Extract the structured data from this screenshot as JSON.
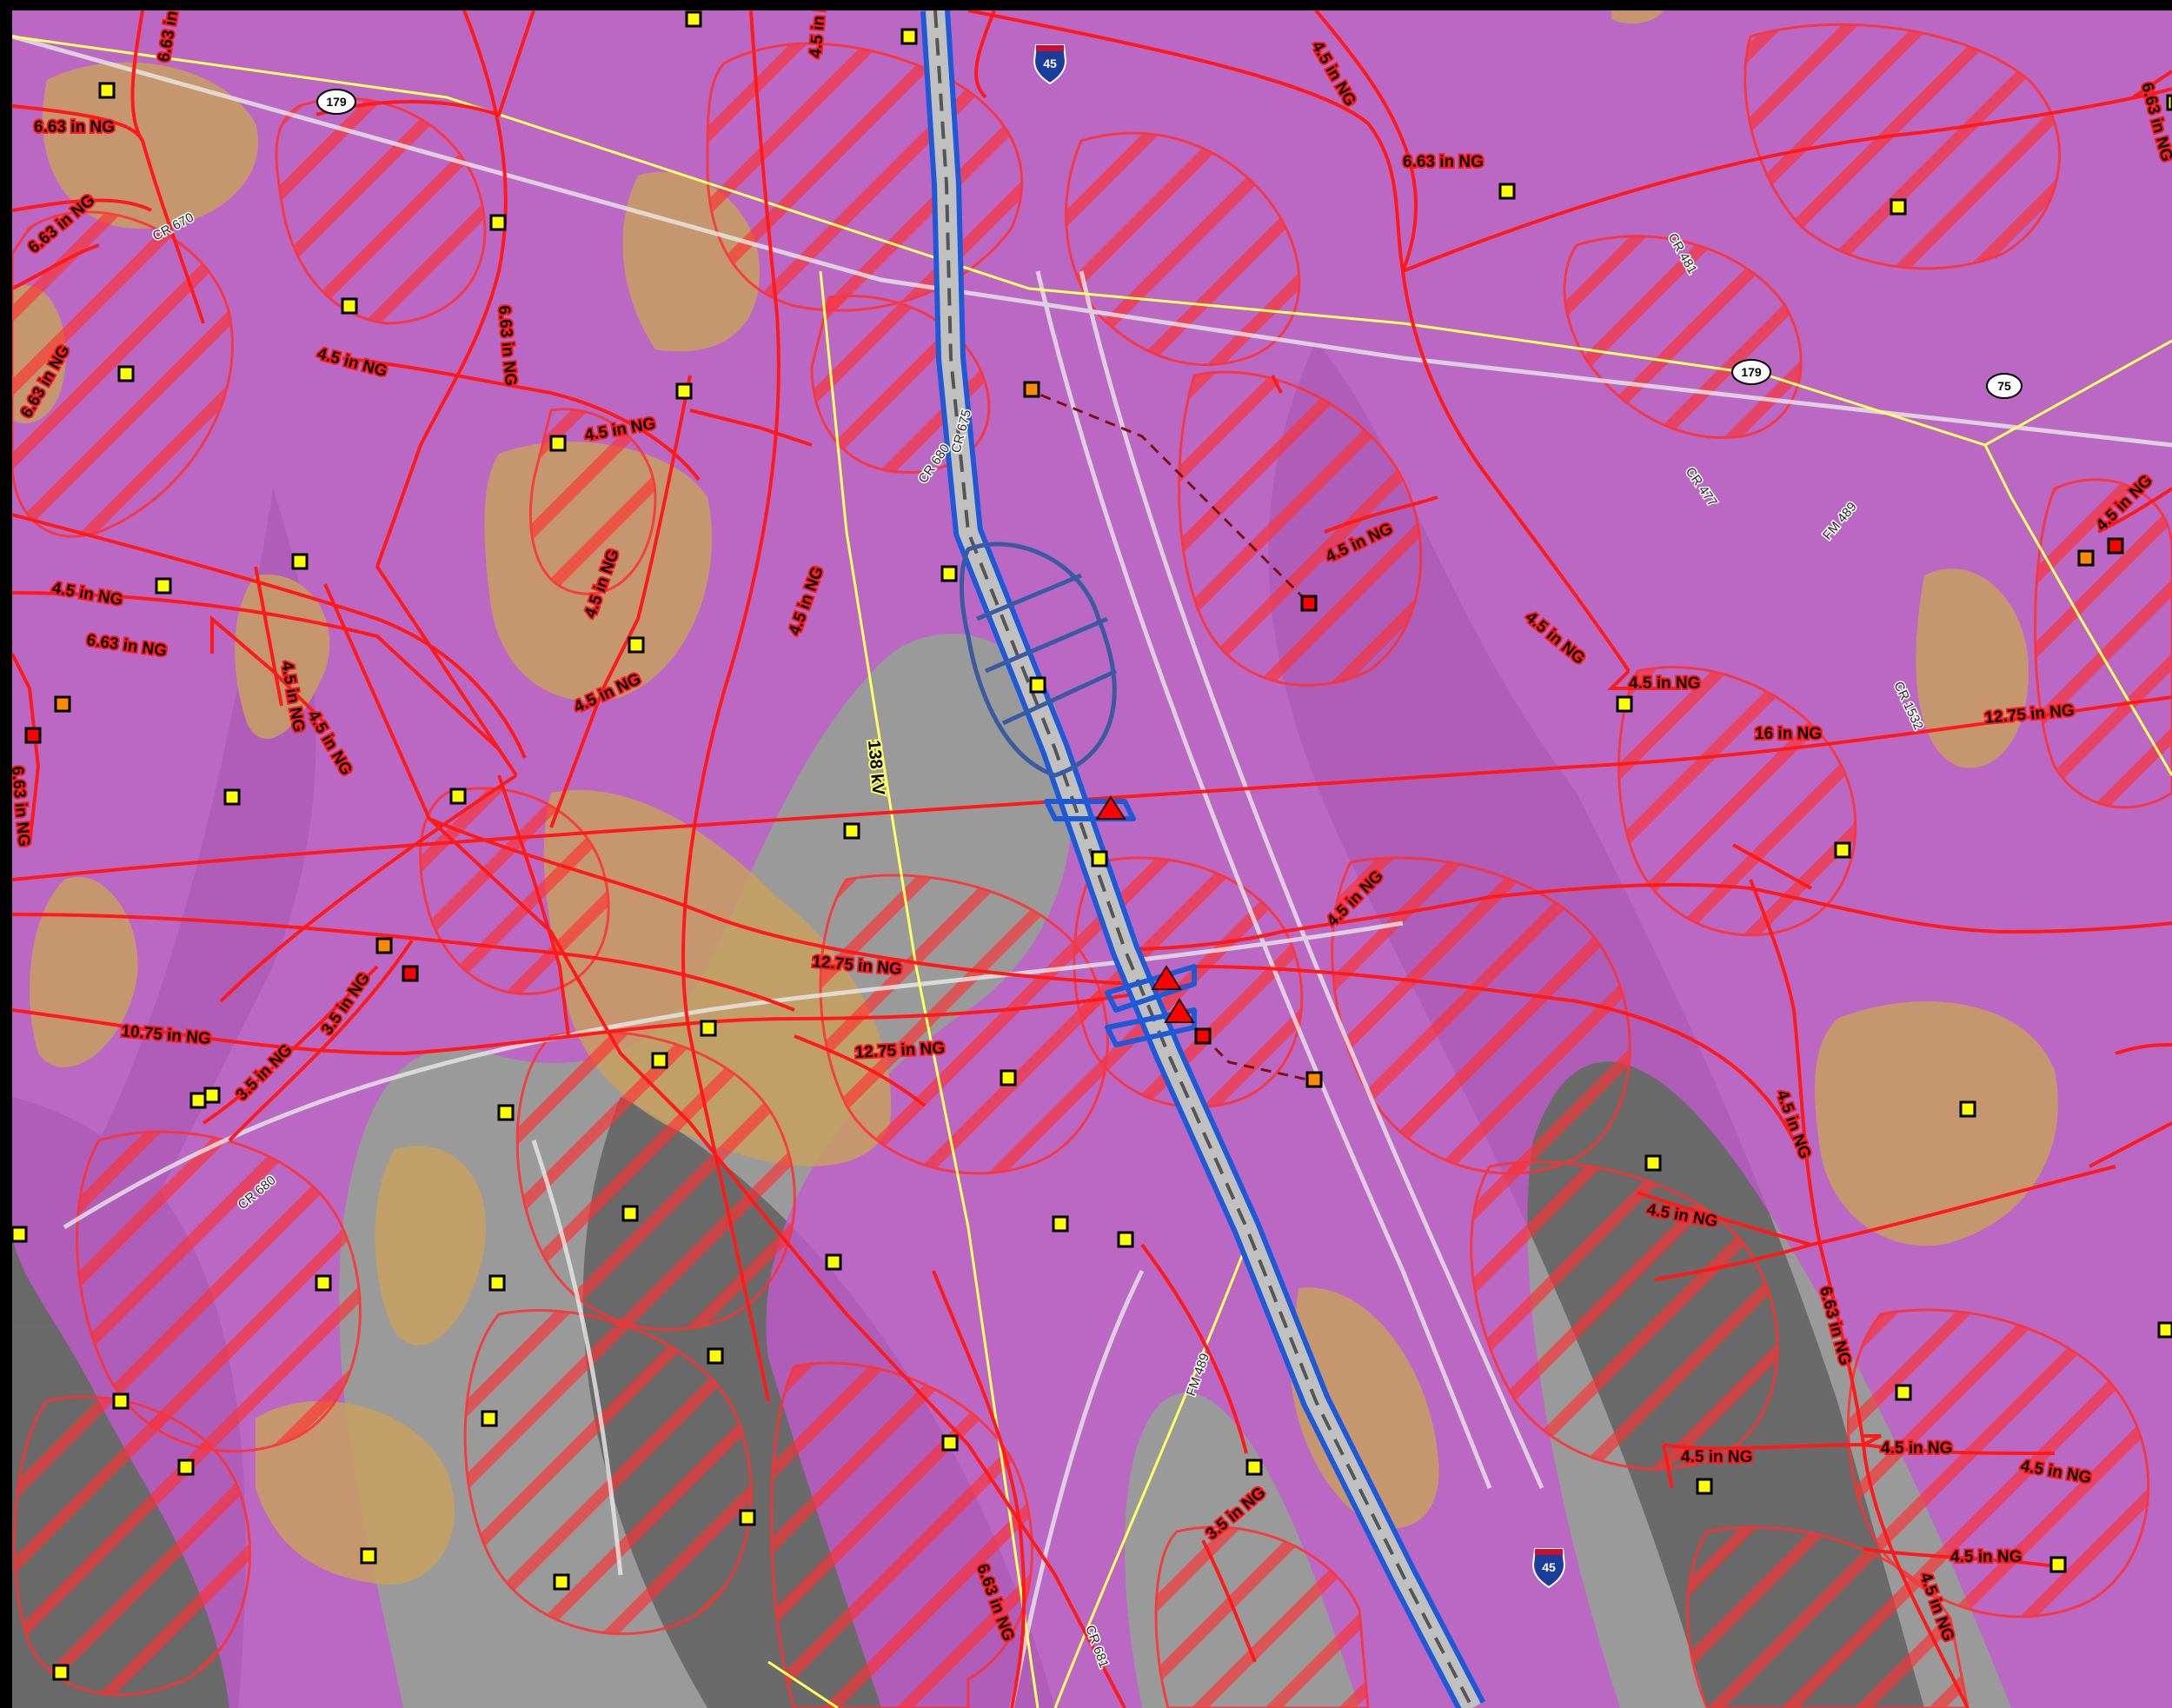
{
  "map": {
    "colors": {
      "background": "#9e9e9e",
      "purple_zone": "#c060d0",
      "tan_zone": "#c8a060",
      "hatch_line": "#ff1a1a",
      "pipeline": "#ff1a1a",
      "corridor": "#1e5ad8",
      "powerline": "#ffff66",
      "structure_yellow": "#ffff00",
      "structure_orange": "#ff8c00",
      "structure_red": "#ff0000"
    },
    "pipeline_labels": [
      "6.63 in NG",
      "4.5 in NG",
      "6.63 in NG",
      "6.63 in NG",
      "4.5 in NG",
      "6.63 in NG",
      "4.5 in NG",
      "4.5 in NG",
      "6.63 in NG",
      "4.5 in NG",
      "6.63 in NG",
      "4.5 in NG",
      "4.5 in NG",
      "4.5 in NG",
      "4.5 in NG",
      "4.5 in NG",
      "4.5 in NG",
      "4.5 in NG",
      "6.63 in NG",
      "12.75 in NG",
      "16 in NG",
      "12.75 in NG",
      "12.75 in NG",
      "10.75 in NG",
      "3.5 in NG",
      "3.5 in NG",
      "4.5 in NG",
      "4.5 in NG",
      "6.63 in NG",
      "4.5 in NG",
      "4.5 in NG",
      "4.5 in NG",
      "4.5 in NG",
      "6.63 in NG",
      "6.63 in NG",
      "3.5 in NG",
      "4.5 in NG",
      "4.5 in NG",
      "4.5 in NG",
      "6.63 in NG",
      "4.5 in NG"
    ],
    "powerline_label": "138 kV",
    "road_labels": [
      "CR 670",
      "CR 680",
      "CR 675",
      "CR 481",
      "CR 477",
      "FM 489",
      "CR 1532",
      "CR 680",
      "FM 489",
      "CR 681"
    ],
    "highway_shields": [
      "45",
      "179",
      "179",
      "75",
      "45"
    ]
  }
}
